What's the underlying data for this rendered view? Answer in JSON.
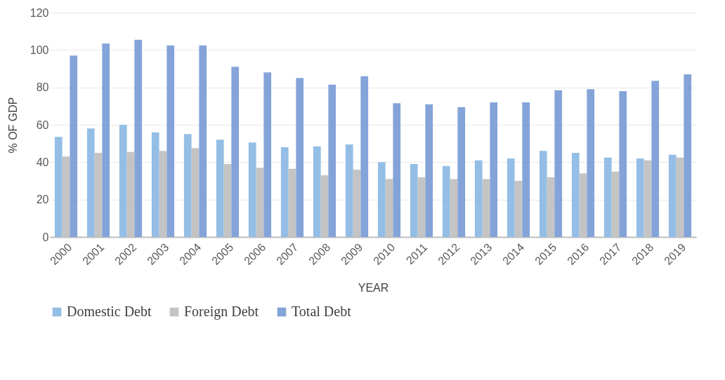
{
  "chart_data": {
    "type": "bar",
    "xlabel": "YEAR",
    "ylabel": "% OF GDP",
    "categories": [
      "2000",
      "2001",
      "2002",
      "2003",
      "2004",
      "2005",
      "2006",
      "2007",
      "2008",
      "2009",
      "2010",
      "2011",
      "2012",
      "2013",
      "2014",
      "2015",
      "2016",
      "2017",
      "2018",
      "2019"
    ],
    "series": [
      {
        "name": "Domestic Debt",
        "color": "#8bb8e3",
        "values": [
          53.5,
          58,
          60,
          56,
          55,
          52,
          50.5,
          48,
          48.5,
          49.5,
          40,
          39,
          38,
          41,
          42,
          46,
          45,
          42.5,
          42,
          44
        ]
      },
      {
        "name": "Foreign Debt",
        "color": "#bfbfbf",
        "values": [
          43,
          45,
          45.5,
          46,
          47.5,
          39,
          37,
          36.5,
          33,
          36,
          31,
          32,
          31,
          31,
          30,
          32,
          34,
          35,
          41,
          42.5
        ]
      },
      {
        "name": "Total Debt",
        "color": "#7a9cd6",
        "values": [
          97,
          103.5,
          105.5,
          102.5,
          102.5,
          91,
          88,
          85,
          81.5,
          86,
          71.5,
          71,
          69.5,
          72,
          72,
          78.5,
          79,
          78,
          83.5,
          87
        ]
      }
    ],
    "ylim": [
      0,
      120
    ],
    "yticks": [
      0,
      20,
      40,
      60,
      80,
      100,
      120
    ],
    "grid": "y",
    "legend": "bottom"
  }
}
